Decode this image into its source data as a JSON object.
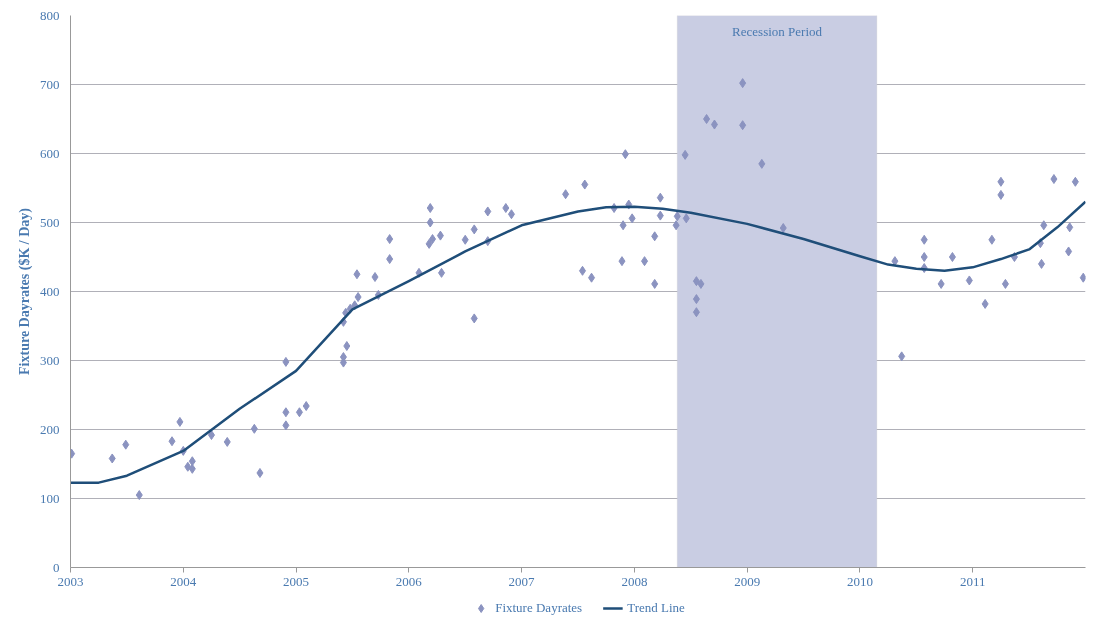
{
  "chart_data": {
    "type": "scatter",
    "ylabel": "Fixture Dayrates ($K / Day)",
    "xlim": [
      2003,
      2012
    ],
    "xticks": [
      2003,
      2004,
      2005,
      2006,
      2007,
      2008,
      2009,
      2010,
      2011
    ],
    "ylim": [
      0,
      800
    ],
    "yticks": [
      0,
      100,
      200,
      300,
      400,
      500,
      600,
      700,
      800
    ],
    "grid": "y",
    "legend": "bottom",
    "bands": [
      {
        "axis": "x",
        "from": 2008.38,
        "to": 2010.15,
        "label": "Recession Period",
        "color": "#c9cde3"
      }
    ],
    "series": [
      {
        "name": "Fixture Dayrates",
        "marker": "diamond",
        "color": "#8b93c0",
        "x": [
          2003.01,
          2003.37,
          2003.49,
          2003.61,
          2003.97,
          2003.9,
          2004.0,
          2004.04,
          2004.08,
          2004.08,
          2004.25,
          2004.39,
          2004.63,
          2004.68,
          2004.91,
          2004.91,
          2004.91,
          2005.03,
          2005.09,
          2005.42,
          2005.42,
          2005.45,
          2005.42,
          2005.44,
          2005.48,
          2005.52,
          2005.55,
          2005.54,
          2005.7,
          2005.73,
          2005.83,
          2005.83,
          2006.09,
          2006.19,
          2006.19,
          2006.18,
          2006.21,
          2006.28,
          2006.29,
          2006.5,
          2006.58,
          2006.58,
          2006.7,
          2006.7,
          2006.86,
          2006.91,
          2007.39,
          2007.56,
          2007.54,
          2007.62,
          2007.82,
          2007.92,
          2007.89,
          2007.9,
          2007.95,
          2007.98,
          2008.09,
          2008.18,
          2008.18,
          2008.23,
          2008.23,
          2008.37,
          2008.38,
          2008.45,
          2008.46,
          2008.55,
          2008.59,
          2008.55,
          2008.55,
          2008.64,
          2008.71,
          2008.96,
          2008.96,
          2009.13,
          2009.32,
          2010.31,
          2010.37,
          2010.57,
          2010.57,
          2010.57,
          2010.72,
          2010.82,
          2010.97,
          2011.11,
          2011.17,
          2011.25,
          2011.25,
          2011.29,
          2011.37,
          2011.61,
          2011.6,
          2011.63,
          2011.72,
          2011.85,
          2011.86,
          2011.91,
          2011.98
        ],
        "values": [
          165,
          158,
          178,
          105,
          211,
          183,
          169,
          146,
          143,
          154,
          192,
          182,
          201,
          137,
          298,
          225,
          206,
          225,
          234,
          297,
          305,
          321,
          356,
          369,
          375,
          380,
          392,
          425,
          421,
          395,
          447,
          476,
          427,
          521,
          500,
          469,
          476,
          481,
          427,
          475,
          490,
          361,
          516,
          473,
          521,
          512,
          541,
          555,
          430,
          420,
          521,
          599,
          444,
          496,
          526,
          506,
          444,
          411,
          480,
          510,
          536,
          496,
          509,
          598,
          506,
          415,
          411,
          389,
          370,
          650,
          642,
          702,
          641,
          585,
          492,
          444,
          306,
          475,
          450,
          434,
          411,
          450,
          416,
          382,
          475,
          559,
          540,
          411,
          450,
          440,
          470,
          496,
          563,
          458,
          493,
          559,
          420
        ]
      },
      {
        "name": "Trend Line",
        "type": "line",
        "color": "#1f4e79",
        "x": [
          2003,
          2003.25,
          2003.5,
          2004,
          2004.5,
          2005,
          2005.5,
          2006,
          2006.5,
          2007,
          2007.5,
          2007.75,
          2008,
          2008.25,
          2008.5,
          2009,
          2009.5,
          2010,
          2010.25,
          2010.5,
          2010.75,
          2011,
          2011.25,
          2011.5,
          2011.75,
          2012
        ],
        "values": [
          123,
          123,
          133,
          169,
          230,
          285,
          374,
          415,
          458,
          496,
          516,
          522,
          523,
          520,
          514,
          498,
          476,
          451,
          439,
          433,
          430,
          435,
          447,
          461,
          493,
          530
        ]
      }
    ]
  }
}
